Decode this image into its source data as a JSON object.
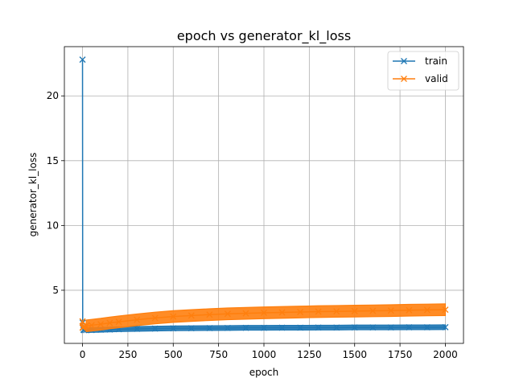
{
  "chart_data": {
    "type": "line",
    "title": "epoch vs generator_kl_loss",
    "xlabel": "epoch",
    "ylabel": "generator_kl_loss",
    "xlim": [
      -100,
      2100
    ],
    "ylim": [
      0.9,
      23.8
    ],
    "xticks": [
      0,
      250,
      500,
      750,
      1000,
      1250,
      1500,
      1750,
      2000
    ],
    "yticks": [
      5,
      10,
      15,
      20
    ],
    "grid": true,
    "legend_position": "upper-right",
    "marker": "x",
    "series": [
      {
        "name": "train",
        "color": "#1f77b4",
        "x": [
          0,
          1,
          2,
          5,
          10,
          20,
          50,
          100,
          150,
          200,
          300,
          400,
          500,
          600,
          700,
          800,
          900,
          1000,
          1100,
          1200,
          1300,
          1400,
          1500,
          1600,
          1700,
          1800,
          1900,
          2000
        ],
        "y": [
          22.8,
          2.5,
          2.1,
          1.95,
          1.92,
          1.92,
          1.93,
          1.95,
          1.97,
          1.99,
          2.02,
          2.04,
          2.06,
          2.07,
          2.08,
          2.09,
          2.1,
          2.1,
          2.11,
          2.11,
          2.12,
          2.12,
          2.13,
          2.13,
          2.13,
          2.14,
          2.14,
          2.15
        ],
        "band": 0.18
      },
      {
        "name": "valid",
        "color": "#ff7f0e",
        "x": [
          0,
          1,
          2,
          5,
          10,
          20,
          50,
          100,
          150,
          200,
          300,
          400,
          500,
          600,
          700,
          800,
          900,
          1000,
          1100,
          1200,
          1300,
          1400,
          1500,
          1600,
          1700,
          1800,
          1900,
          2000
        ],
        "y": [
          2.6,
          2.1,
          2.15,
          2.2,
          2.22,
          2.25,
          2.3,
          2.38,
          2.48,
          2.56,
          2.72,
          2.86,
          2.97,
          3.05,
          3.12,
          3.18,
          3.22,
          3.26,
          3.29,
          3.32,
          3.35,
          3.37,
          3.39,
          3.41,
          3.43,
          3.46,
          3.48,
          3.5
        ],
        "band": 0.45
      }
    ]
  }
}
